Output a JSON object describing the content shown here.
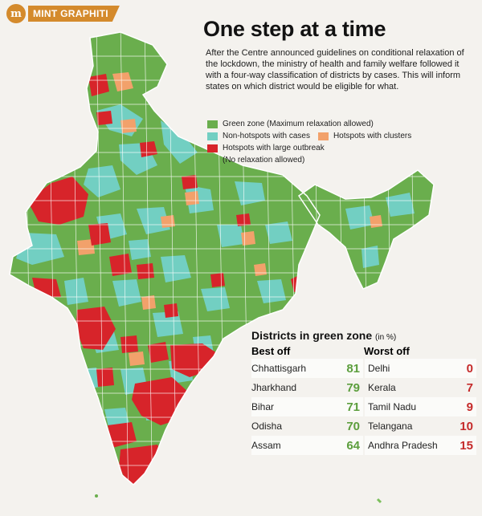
{
  "brand": {
    "logo": "m",
    "name": "MINT GRAPHITI"
  },
  "title": "One step at a time",
  "description": "After the Centre announced guidelines on conditional relaxation of the lockdown, the ministry of health and family welfare followed it with a four-way classification of districts by cases. This will inform states on which district would be eligible for what.",
  "legend": {
    "green": "Green zone (Maximum relaxation allowed)",
    "nonhotspot": "Non-hotspots with cases",
    "clusters": "Hotspots with clusters",
    "outbreak": "Hotspots with large outbreak",
    "outbreak_note": "(No relaxation allowed)"
  },
  "colors": {
    "green": "#6aae4d",
    "nonhotspot": "#72cfc2",
    "clusters": "#f2a16b",
    "outbreak": "#d7242a",
    "outside": "#f7f7f7"
  },
  "table": {
    "title": "Districts in green zone",
    "unit": "(in %)",
    "best_header": "Best off",
    "worst_header": "Worst off",
    "best": [
      {
        "state": "Chhattisgarh",
        "value": "81"
      },
      {
        "state": "Jharkhand",
        "value": "79"
      },
      {
        "state": "Bihar",
        "value": "71"
      },
      {
        "state": "Odisha",
        "value": "70"
      },
      {
        "state": "Assam",
        "value": "64"
      }
    ],
    "worst": [
      {
        "state": "Delhi",
        "value": "0"
      },
      {
        "state": "Kerala",
        "value": "7"
      },
      {
        "state": "Tamil Nadu",
        "value": "9"
      },
      {
        "state": "Telangana",
        "value": "10"
      },
      {
        "state": "Andhra Pradesh",
        "value": "15"
      }
    ]
  }
}
